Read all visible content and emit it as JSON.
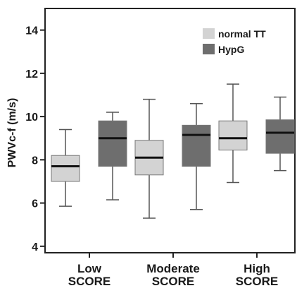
{
  "chart_data": {
    "type": "box",
    "title": "",
    "xlabel": "",
    "ylabel": "PWVc-f (m/s)",
    "ylim": [
      3.7,
      15
    ],
    "yticks": [
      4,
      6,
      8,
      10,
      12,
      14
    ],
    "categories": [
      {
        "line1": "Low",
        "line2": "SCORE"
      },
      {
        "line1": "Moderate",
        "line2": "SCORE"
      },
      {
        "line1": "High",
        "line2": "SCORE"
      }
    ],
    "legend": {
      "position": "top-right"
    },
    "series": [
      {
        "name": "normal TT",
        "color": "#d3d3d3",
        "boxes": [
          {
            "min": 5.85,
            "q1": 7.0,
            "median": 7.7,
            "q3": 8.2,
            "max": 9.4
          },
          {
            "min": 5.3,
            "q1": 7.3,
            "median": 8.1,
            "q3": 8.9,
            "max": 10.8
          },
          {
            "min": 6.95,
            "q1": 8.45,
            "median": 9.0,
            "q3": 9.8,
            "max": 11.5
          }
        ]
      },
      {
        "name": "HypG",
        "color": "#6e6e6e",
        "boxes": [
          {
            "min": 6.15,
            "q1": 7.7,
            "median": 9.0,
            "q3": 9.8,
            "max": 10.2
          },
          {
            "min": 5.7,
            "q1": 7.7,
            "median": 9.15,
            "q3": 9.6,
            "max": 10.6
          },
          {
            "min": 7.5,
            "q1": 8.3,
            "median": 9.25,
            "q3": 9.85,
            "max": 10.9
          }
        ]
      }
    ]
  }
}
